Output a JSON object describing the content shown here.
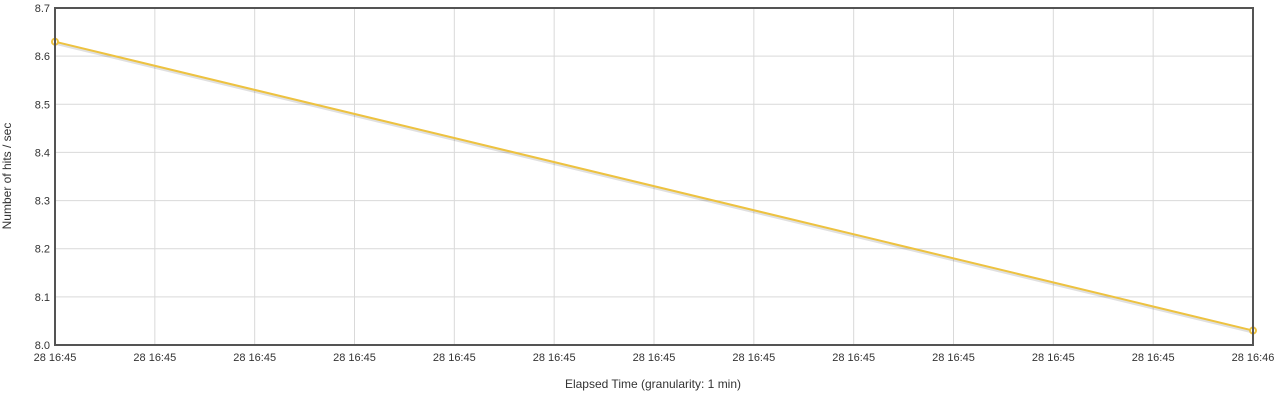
{
  "chart_data": {
    "type": "line",
    "xlabel": "Elapsed Time (granularity: 1 min)",
    "ylabel": "Number of hits / sec",
    "x_tick_labels": [
      "28 16:45",
      "28 16:45",
      "28 16:45",
      "28 16:45",
      "28 16:45",
      "28 16:45",
      "28 16:45",
      "28 16:45",
      "28 16:45",
      "28 16:45",
      "28 16:45",
      "28 16:45",
      "28 16:46"
    ],
    "y_ticks": [
      8.0,
      8.1,
      8.2,
      8.3,
      8.4,
      8.5,
      8.6,
      8.7
    ],
    "y_tick_labels": [
      "8.0",
      "8.1",
      "8.2",
      "8.3",
      "8.4",
      "8.5",
      "8.6",
      "8.7"
    ],
    "ylim": [
      8.0,
      8.7
    ],
    "grid": true,
    "series": [
      {
        "color": "#edc240",
        "points": [
          {
            "x_index": 0,
            "y": 8.63
          },
          {
            "x_index": 12,
            "y": 8.03
          }
        ]
      }
    ]
  }
}
